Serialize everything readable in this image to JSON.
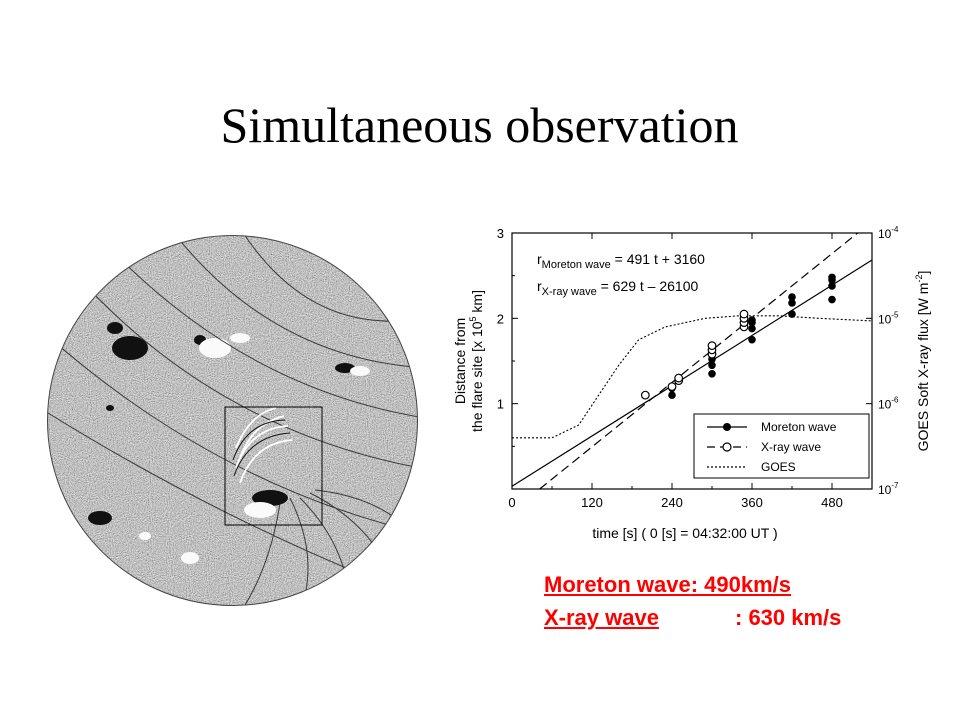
{
  "slide": {
    "title": "Simultaneous observation",
    "captions": {
      "moreton_label": "Moreton wave",
      "moreton_value": ": 490km/s",
      "xray_label": "X-ray wave",
      "xray_value": ": 630 km/s"
    }
  },
  "chart_data": {
    "type": "scatter",
    "xlabel": "time [s] ( 0 [s] = 04:32:00 UT )",
    "ylabel_line1": "Distance from",
    "ylabel_line2": "the flare site [x 10",
    "ylabel_exp": "5",
    "ylabel_unit": " km]",
    "y2label": "GOES Soft X-ray flux [W m",
    "y2label_exp": "-2",
    "y2label_end": "]",
    "xlim": [
      0,
      540
    ],
    "ylim": [
      0,
      3
    ],
    "x_ticks": [
      "0",
      "120",
      "240",
      "360",
      "480"
    ],
    "x_tick_values": [
      0,
      120,
      240,
      360,
      480
    ],
    "y_ticks": [
      "1",
      "2",
      "3"
    ],
    "y_tick_values": [
      1,
      2,
      3
    ],
    "y2_log_range": [
      -7,
      -4
    ],
    "y2_ticks": [
      {
        "base": "10",
        "exp": "-7",
        "log": -7
      },
      {
        "base": "10",
        "exp": "-6",
        "log": -6
      },
      {
        "base": "10",
        "exp": "-5",
        "log": -5
      },
      {
        "base": "10",
        "exp": "-4",
        "log": -4
      }
    ],
    "fits": {
      "moreton": {
        "r": "r",
        "sub": "Moreton wave",
        "eq": " = 491 t + 3160",
        "slope": 491,
        "intercept": 3160
      },
      "xray": {
        "r": "r",
        "sub": "X-ray wave",
        "eq": " = 629 t – 26100",
        "slope": 629,
        "intercept": -26100
      }
    },
    "series": [
      {
        "name": "Moreton wave",
        "marker": "filled-circle",
        "line": "solid",
        "points": [
          [
            240,
            1.1
          ],
          [
            240,
            1.18
          ],
          [
            300,
            1.35
          ],
          [
            300,
            1.45
          ],
          [
            300,
            1.52
          ],
          [
            300,
            1.58
          ],
          [
            360,
            1.75
          ],
          [
            360,
            1.88
          ],
          [
            360,
            1.95
          ],
          [
            360,
            1.98
          ],
          [
            420,
            2.05
          ],
          [
            420,
            2.18
          ],
          [
            420,
            2.25
          ],
          [
            480,
            2.22
          ],
          [
            480,
            2.38
          ],
          [
            480,
            2.45
          ],
          [
            480,
            2.48
          ]
        ]
      },
      {
        "name": "X-ray wave",
        "marker": "open-circle",
        "line": "dashed",
        "points": [
          [
            200,
            1.1
          ],
          [
            240,
            1.2
          ],
          [
            250,
            1.27
          ],
          [
            250,
            1.3
          ],
          [
            300,
            1.58
          ],
          [
            300,
            1.63
          ],
          [
            300,
            1.68
          ],
          [
            348,
            1.9
          ],
          [
            348,
            1.95
          ],
          [
            348,
            2.0
          ],
          [
            348,
            2.05
          ]
        ]
      },
      {
        "name": "GOES",
        "line": "dotted",
        "axis": "right",
        "points": [
          [
            0,
            -6.4
          ],
          [
            60,
            -6.4
          ],
          [
            100,
            -6.25
          ],
          [
            130,
            -5.9
          ],
          [
            160,
            -5.55
          ],
          [
            190,
            -5.25
          ],
          [
            230,
            -5.1
          ],
          [
            290,
            -5.0
          ],
          [
            340,
            -4.97
          ],
          [
            400,
            -4.97
          ],
          [
            460,
            -5.0
          ],
          [
            540,
            -5.03
          ]
        ]
      }
    ],
    "legend": [
      "Moreton wave",
      "X-ray wave",
      "GOES"
    ],
    "legend_position": "lower-right",
    "grid": false
  }
}
